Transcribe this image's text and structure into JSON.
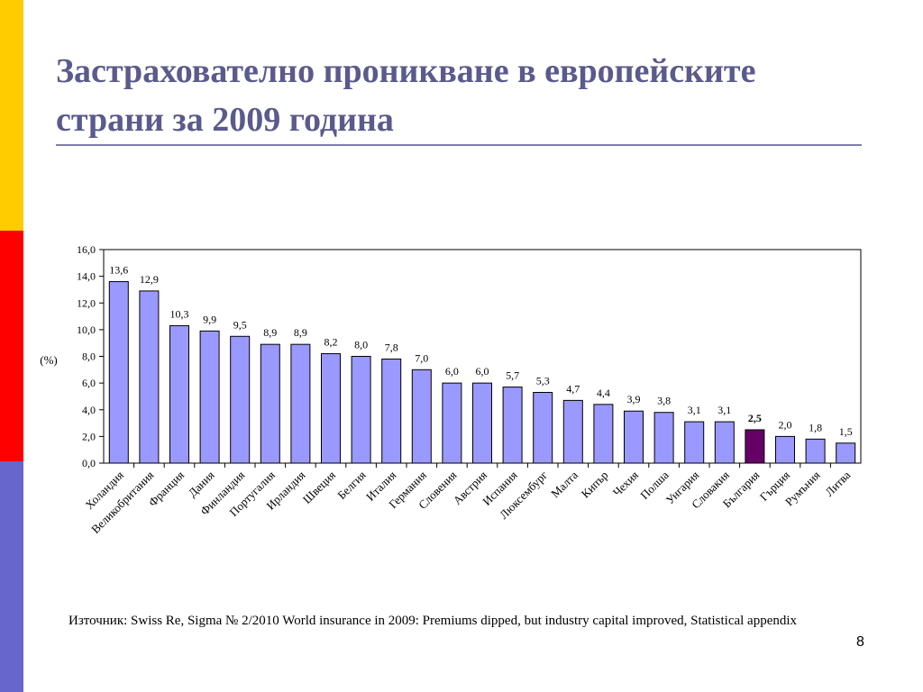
{
  "slide": {
    "title": "Застрахователно проникване в европейските страни за 2009 година",
    "source": "Източник: Swiss Re, Sigma № 2/2010 World insurance in 2009: Premiums dipped, but industry capital improved, Statistical appendix",
    "page_number": "8"
  },
  "colors": {
    "stripe_top": "#FFCC00",
    "stripe_middle": "#FF0000",
    "stripe_bottom": "#6666CC",
    "title_text": "#5A5A8C",
    "bar_fill": "#9999FF",
    "highlight_fill": "#660066"
  },
  "chart_data": {
    "type": "bar",
    "ylabel": "(%)",
    "ylim": [
      0,
      16
    ],
    "ytick_step": 2,
    "ytick_labels": [
      "0,0",
      "2,0",
      "4,0",
      "6,0",
      "8,0",
      "10,0",
      "12,0",
      "14,0",
      "16,0"
    ],
    "grid": false,
    "legend": "none",
    "categories": [
      "Холандия",
      "Великобритания",
      "Франция",
      "Дания",
      "Финландия",
      "Португалия",
      "Ирландия",
      "Швеция",
      "Белгия",
      "Италия",
      "Германия",
      "Словения",
      "Австрия",
      "Испания",
      "Люксембург",
      "Малта",
      "Кипър",
      "Чехия",
      "Полша",
      "Унгария",
      "Словакия",
      "България",
      "Гърция",
      "Румъния",
      "Литва"
    ],
    "values": [
      13.6,
      12.9,
      10.3,
      9.9,
      9.5,
      8.9,
      8.9,
      8.2,
      8.0,
      7.8,
      7.0,
      6.0,
      6.0,
      5.7,
      5.3,
      4.7,
      4.4,
      3.9,
      3.8,
      3.1,
      3.1,
      2.5,
      2.0,
      1.8,
      1.5
    ],
    "value_labels": [
      "13,6",
      "12,9",
      "10,3",
      "9,9",
      "9,5",
      "8,9",
      "8,9",
      "8,2",
      "8,0",
      "7,8",
      "7,0",
      "6,0",
      "6,0",
      "5,7",
      "5,3",
      "4,7",
      "4,4",
      "3,9",
      "3,8",
      "3,1",
      "3,1",
      "2,5",
      "2,0",
      "1,8",
      "1,5"
    ],
    "highlight": "България"
  }
}
